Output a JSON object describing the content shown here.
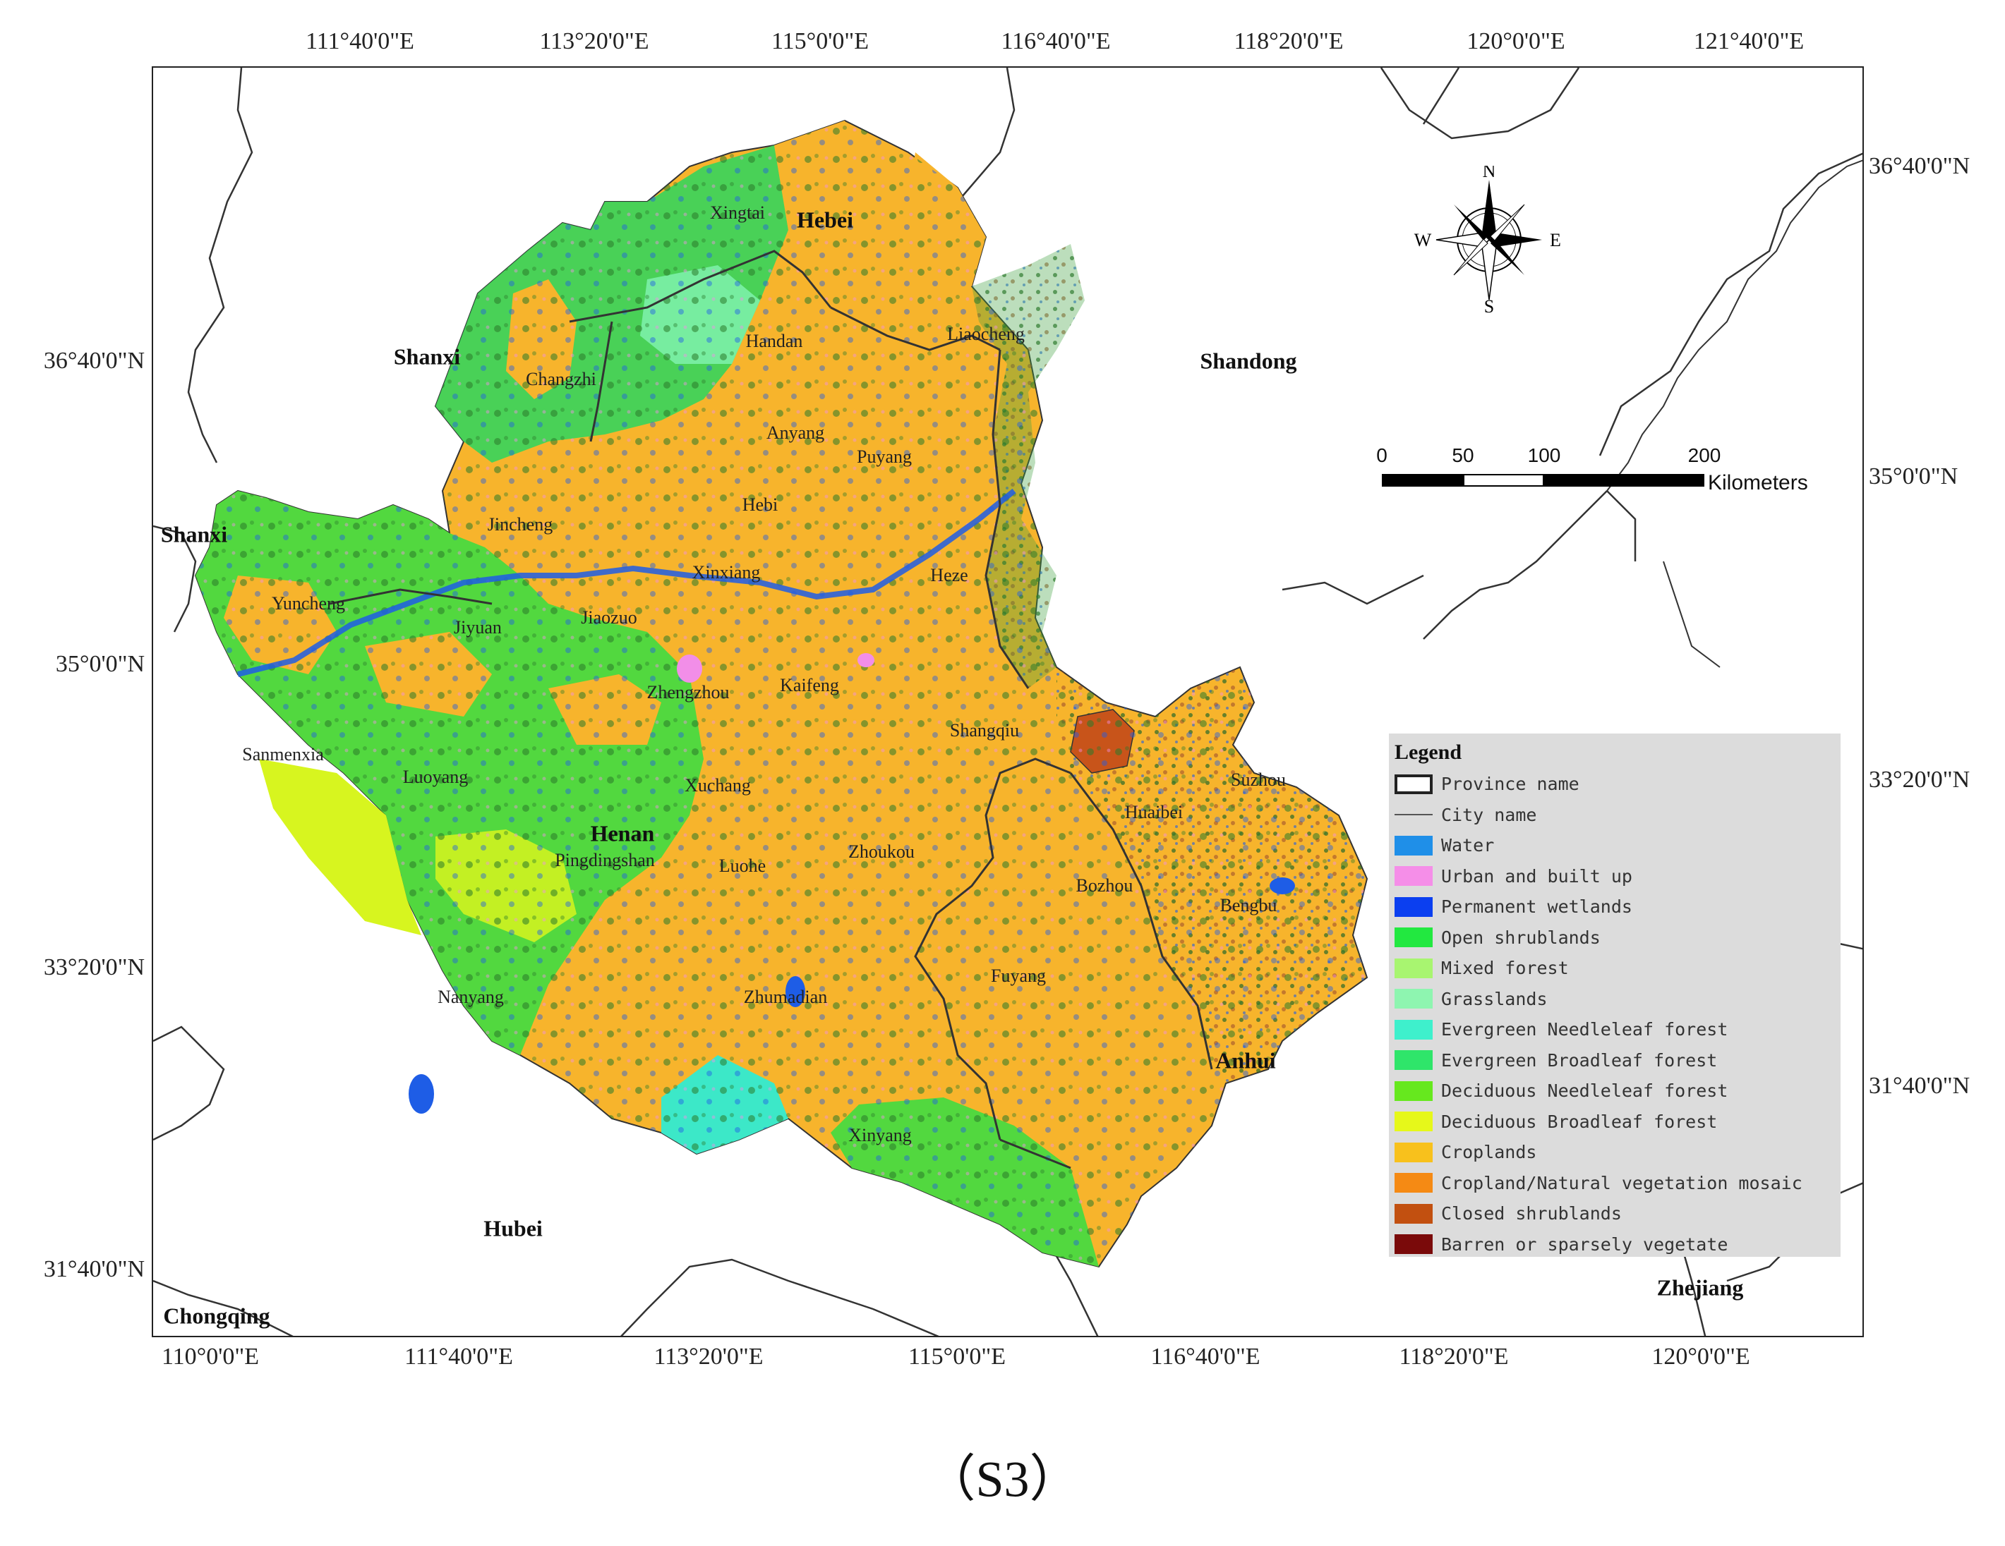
{
  "map": {
    "top_ticks": [
      "111°40'0\"E",
      "113°20'0\"E",
      "115°0'0\"E",
      "116°40'0\"E",
      "118°20'0\"E",
      "120°0'0\"E",
      "121°40'0\"E"
    ],
    "bottom_ticks": [
      "110°0'0\"E",
      "111°40'0\"E",
      "113°20'0\"E",
      "115°0'0\"E",
      "116°40'0\"E",
      "118°20'0\"E",
      "120°0'0\"E"
    ],
    "left_ticks": [
      "36°40'0\"N",
      "35°0'0\"N",
      "33°20'0\"N",
      "31°40'0\"N"
    ],
    "right_ticks": [
      "36°40'0\"N",
      "35°0'0\"N",
      "33°20'0\"N",
      "31°40'0\"N"
    ],
    "provinces": [
      "Hebei",
      "Shanxi",
      "Shandong",
      "Shanxi",
      "Henan",
      "Anhui",
      "Hubei",
      "Chongqing",
      "Zhejiang"
    ],
    "cities": [
      "Xingtai",
      "Handan",
      "Liaocheng",
      "Changzhi",
      "Anyang",
      "Puyang",
      "Jincheng",
      "Hebi",
      "Xinxiang",
      "Yuncheng",
      "Jiyuan",
      "Jiaozuo",
      "Heze",
      "Zhengzhou",
      "Kaifeng",
      "Sanmenxia",
      "Shangqiu",
      "Luoyang",
      "Xuchang",
      "Suzhou",
      "Huaibei",
      "Pingdingshan",
      "Luohe",
      "Zhoukou",
      "Bozhou",
      "Bengbu",
      "Fuyang",
      "Nanyang",
      "Zhumadian",
      "Xinyang"
    ],
    "colors": {
      "cropland": "#f7b42c",
      "forest": "#3fd35a",
      "grass": "#7cf0a8",
      "needleleaf": "#3ce8c8",
      "deciduous": "#d7f51f",
      "water": "#1e5de6",
      "urban": "#f28ee8",
      "shrub": "#c8541a",
      "boundary": "#333333"
    }
  },
  "legend": {
    "title": "Legend",
    "items": [
      {
        "label": "Province name",
        "kind": "box",
        "color": "#ffffff"
      },
      {
        "label": "City name",
        "kind": "line",
        "color": "#555555"
      },
      {
        "label": "Water",
        "kind": "fill",
        "color": "#1f8fe8"
      },
      {
        "label": "Urban and built up",
        "kind": "fill",
        "color": "#f58ee8"
      },
      {
        "label": "Permanent wetlands",
        "kind": "fill",
        "color": "#0b3ff0"
      },
      {
        "label": "Open shrublands",
        "kind": "fill",
        "color": "#22e840"
      },
      {
        "label": "Mixed forest",
        "kind": "fill",
        "color": "#a8f570"
      },
      {
        "label": "Grasslands",
        "kind": "fill",
        "color": "#8ef5b0"
      },
      {
        "label": "Evergreen Needleleaf forest",
        "kind": "fill",
        "color": "#3ef0cc"
      },
      {
        "label": "Evergreen Broadleaf forest",
        "kind": "fill",
        "color": "#2fe56a"
      },
      {
        "label": "Deciduous Needleleaf forest",
        "kind": "fill",
        "color": "#66e81e"
      },
      {
        "label": "Deciduous Broadleaf forest",
        "kind": "fill",
        "color": "#e6f81a"
      },
      {
        "label": "Croplands",
        "kind": "fill",
        "color": "#f8c11c"
      },
      {
        "label": "Cropland/Natural vegetation mosaic",
        "kind": "fill",
        "color": "#f58a14"
      },
      {
        "label": "Closed shrublands",
        "kind": "fill",
        "color": "#c25010"
      },
      {
        "label": "Barren or sparsely vegetate",
        "kind": "fill",
        "color": "#7a0a0a"
      }
    ]
  },
  "scalebar": {
    "labels": [
      "0",
      "50",
      "100",
      "200"
    ],
    "unit": "Kilometers"
  },
  "compass": {
    "n": "N",
    "s": "S",
    "e": "E",
    "w": "W"
  },
  "caption": "（S3）"
}
